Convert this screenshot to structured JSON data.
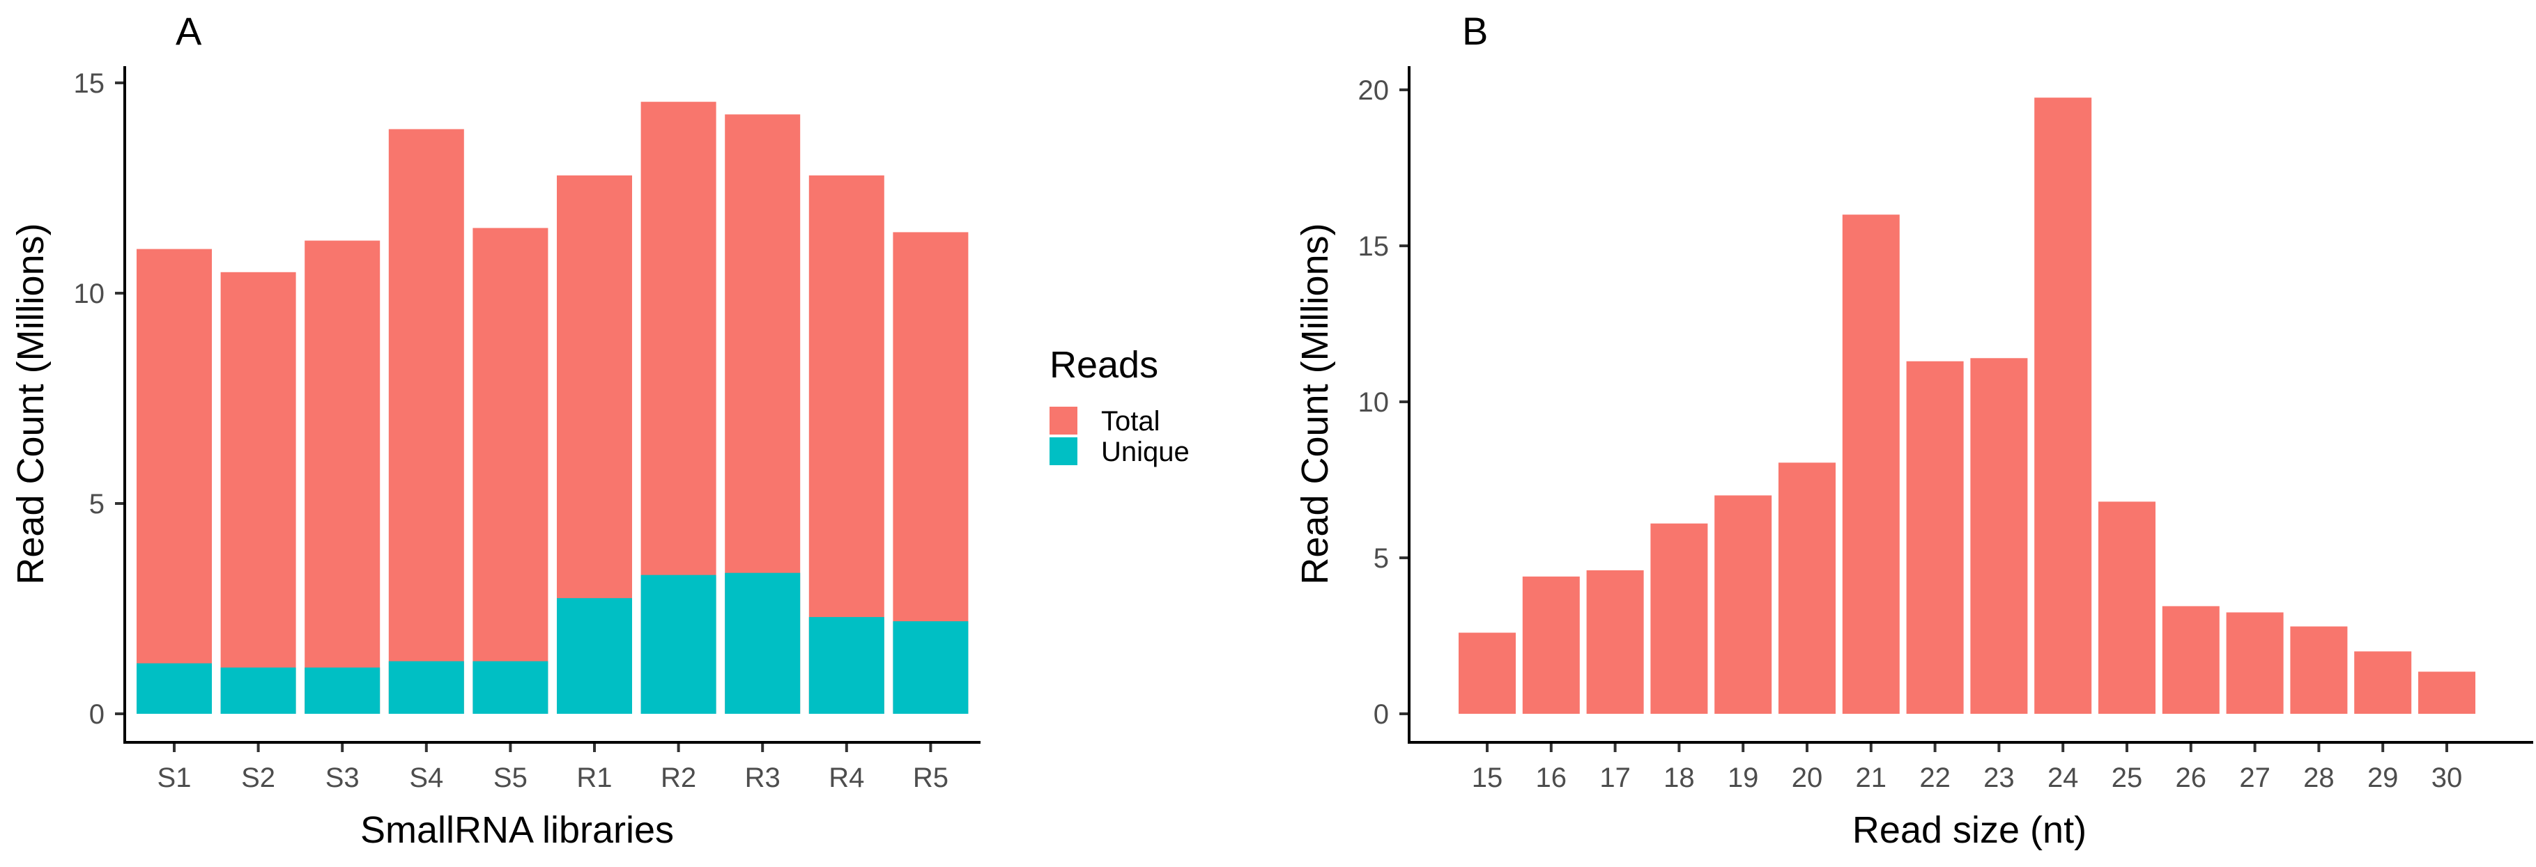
{
  "chart_data": [
    {
      "panel": "A",
      "type": "bar",
      "stacked": "overlay",
      "xlabel": "SmallRNA libraries",
      "ylabel": "Read Count (Millions)",
      "ylim": [
        0,
        15
      ],
      "yticks": [
        0,
        5,
        10,
        15
      ],
      "categories": [
        "S1",
        "S2",
        "S3",
        "S4",
        "S5",
        "R1",
        "R2",
        "R3",
        "R4",
        "R5"
      ],
      "series": [
        {
          "name": "Total",
          "color": "#F8766D",
          "values": [
            11.05,
            10.5,
            11.25,
            13.9,
            11.55,
            12.8,
            14.55,
            14.25,
            12.8,
            11.45
          ]
        },
        {
          "name": "Unique",
          "color": "#00BFC4",
          "values": [
            1.2,
            1.1,
            1.1,
            1.25,
            1.25,
            2.75,
            3.3,
            3.35,
            2.3,
            2.2
          ]
        }
      ],
      "legend": {
        "title": "Reads",
        "position": "right",
        "entries": [
          "Total",
          "Unique"
        ]
      }
    },
    {
      "panel": "B",
      "type": "bar",
      "xlabel": "Read size (nt)",
      "ylabel": "Read Count (Millions)",
      "ylim": [
        0,
        20
      ],
      "yticks": [
        0,
        5,
        10,
        15,
        20
      ],
      "categories": [
        "15",
        "16",
        "17",
        "18",
        "19",
        "20",
        "21",
        "22",
        "23",
        "24",
        "25",
        "26",
        "27",
        "28",
        "29",
        "30"
      ],
      "color": "#F8766D",
      "values": [
        2.6,
        4.4,
        4.6,
        6.1,
        7.0,
        8.05,
        16.0,
        11.3,
        11.4,
        19.75,
        6.8,
        3.45,
        3.25,
        2.8,
        2.0,
        1.35
      ]
    }
  ]
}
